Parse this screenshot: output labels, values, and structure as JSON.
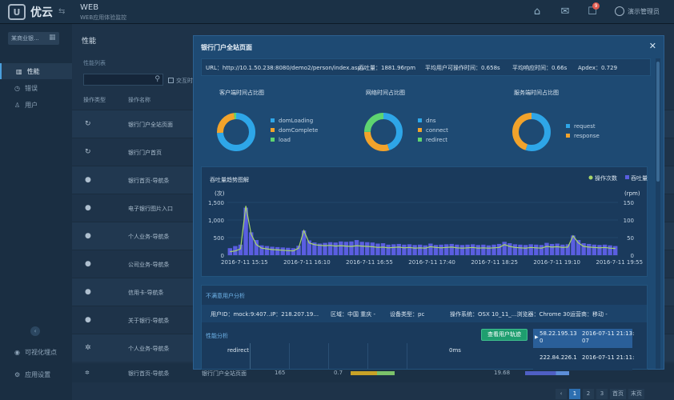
{
  "header": {
    "logo_mark": "U",
    "logo_text": "优云",
    "app_name": "WEB",
    "app_subtitle": "WEB应用体验监控",
    "notif_count": "9",
    "user_name": "演示管理员"
  },
  "sidebar": {
    "select_label": "某商业银...",
    "items": [
      {
        "label": "性能",
        "icon": "chart-icon"
      },
      {
        "label": "错误",
        "icon": "clock-icon"
      },
      {
        "label": "用户",
        "icon": "user-icon"
      }
    ],
    "bottom_items": [
      {
        "label": "可视化埋点",
        "icon": "eye-icon"
      },
      {
        "label": "应用设置",
        "icon": "gear-icon"
      }
    ]
  },
  "background": {
    "page_title": "性能",
    "section_label": "性能列表",
    "checkbox_label": "交互时",
    "col_type": "操作类型",
    "col_name": "操作名称",
    "rows": [
      {
        "icon": "↻",
        "name": "银行门户全站页面"
      },
      {
        "icon": "↻",
        "name": "银行门户首页"
      },
      {
        "icon": "●",
        "name": "银行首页-导航条"
      },
      {
        "icon": "●",
        "name": "电子银行图片入口"
      },
      {
        "icon": "●",
        "name": "个人业务-导航条"
      },
      {
        "icon": "●",
        "name": "公司业务-导航条"
      },
      {
        "icon": "●",
        "name": "信用卡-导航条"
      },
      {
        "icon": "●",
        "name": "关于银行-导航条"
      },
      {
        "icon": "✲",
        "name": "个人业务-导航条"
      }
    ],
    "bottom_row": {
      "icon": "✲",
      "name1": "银行首页-导航条",
      "name2": "银行门户全站页面",
      "count": "165",
      "apdex": "0.7",
      "value": "19.68"
    },
    "pager": [
      "‹",
      "1",
      "2",
      "3",
      "首页",
      "末页"
    ]
  },
  "modal": {
    "title": "银行门户全站页面",
    "url": "URL：http://10.1.50.238:8080/demo2/person/index.asp...",
    "throughput": "吞吐量：1881.96rpm",
    "avg_op_time": "平均用户可操作时间：0.658s",
    "avg_resp_time": "平均响应时间：0.66s",
    "apdex": "Apdex：0.729",
    "donuts": [
      {
        "title": "客户端时间占比图",
        "legend": [
          "domLoading",
          "domComplete",
          "load"
        ],
        "colors": [
          "#2ea6e8",
          "#f2a32b",
          "#5ed470"
        ],
        "values": [
          0.74,
          0.24,
          0.02
        ]
      },
      {
        "title": "网络时间占比图",
        "legend": [
          "dns",
          "connect",
          "redirect"
        ],
        "colors": [
          "#2ea6e8",
          "#f2a32b",
          "#5ed470"
        ],
        "values": [
          0.45,
          0.3,
          0.25
        ]
      },
      {
        "title": "服务端时间占比图",
        "legend": [
          "request",
          "response"
        ],
        "colors": [
          "#2ea6e8",
          "#f2a32b"
        ],
        "values": [
          0.55,
          0.45
        ]
      }
    ],
    "unsatisfied": {
      "title": "不满意用户分析",
      "user_id": "用户ID：mock:9:407...",
      "ip": "IP：218.207.19...",
      "region": "区域：中国 重庆 -",
      "device": "设备类型：pc",
      "os": "操作系统：OSX 10_11_...浏览器：Chrome 30",
      "carrier": "运营商：移动 -",
      "perf_label": "性能分析",
      "redirect_label": "redirect",
      "redirect_value": "0ms",
      "track_button": "查看用户轨迹",
      "list": [
        {
          "ip": "58.22.195.13\n0",
          "time": "2016-07-11 21:13:\n07"
        },
        {
          "ip": "222.84.226.1",
          "time": "2016-07-11 21:11:"
        }
      ]
    }
  },
  "chart_data": {
    "type": "bar",
    "title": "吞吐量趋势图解",
    "legend": [
      "操作次数",
      "吞吐量"
    ],
    "colors": {
      "bars": "#5a5ee0",
      "line": "#a9d56a"
    },
    "y_left_label": "(次)",
    "y_right_label": "(rpm)",
    "y_left_ticks": [
      "0",
      "500",
      "1,000",
      "1,500"
    ],
    "y_right_ticks": [
      "0",
      "50",
      "100",
      "150"
    ],
    "ylim_left": [
      0,
      1500
    ],
    "ylim_right": [
      0,
      150
    ],
    "x_labels": [
      "2016-7-11 15:15",
      "2016-7-11 16:10",
      "2016-7-11 16:55",
      "2016-7-11 17:40",
      "2016-7-11 18:25",
      "2016-7-11 19:10",
      "2016-7-11 19:55"
    ],
    "values": [
      200,
      260,
      300,
      1350,
      650,
      430,
      280,
      260,
      240,
      230,
      220,
      210,
      200,
      270,
      700,
      420,
      360,
      330,
      350,
      370,
      360,
      390,
      380,
      390,
      430,
      380,
      370,
      360,
      330,
      340,
      300,
      310,
      320,
      300,
      310,
      290,
      300,
      280,
      330,
      290,
      300,
      310,
      320,
      300,
      290,
      300,
      310,
      290,
      300,
      280,
      300,
      320,
      380,
      340,
      310,
      300,
      290,
      310,
      300,
      290,
      350,
      320,
      330,
      300,
      310,
      560,
      430,
      340,
      320,
      300,
      290,
      300,
      280,
      260
    ],
    "line_values": [
      10,
      12,
      18,
      140,
      60,
      30,
      20,
      18,
      16,
      15,
      14,
      13,
      12,
      20,
      70,
      35,
      30,
      28,
      27,
      28,
      26,
      27,
      26,
      25,
      27,
      26,
      25,
      24,
      22,
      23,
      21,
      22,
      23,
      21,
      22,
      20,
      21,
      20,
      24,
      22,
      21,
      22,
      23,
      21,
      20,
      21,
      22,
      20,
      21,
      20,
      21,
      22,
      30,
      25,
      22,
      21,
      20,
      22,
      21,
      20,
      25,
      23,
      24,
      22,
      23,
      55,
      35,
      25,
      23,
      22,
      21,
      22,
      20,
      19
    ]
  }
}
